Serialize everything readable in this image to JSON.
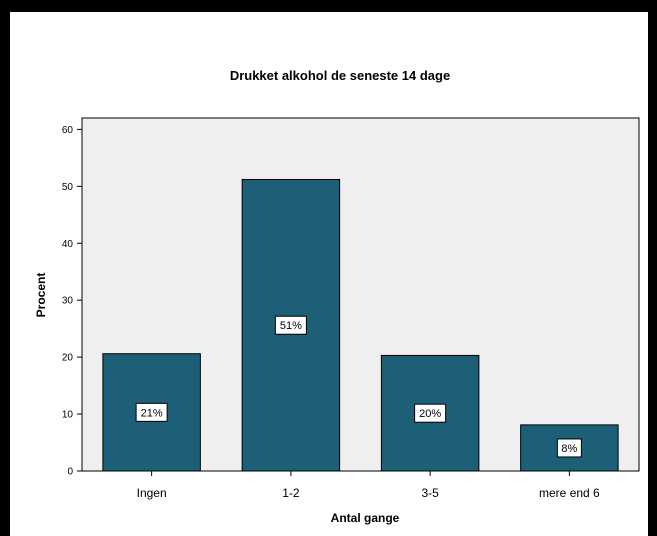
{
  "chart_data": {
    "type": "bar",
    "title": "Drukket alkohol de seneste 14 dage",
    "xlabel": "Antal gange",
    "ylabel": "Procent",
    "categories": [
      "Ingen",
      "1-2",
      "3-5",
      "mere end 6"
    ],
    "values": [
      20.6,
      51.2,
      20.3,
      8.1
    ],
    "data_labels": [
      "21%",
      "51%",
      "20%",
      "8%"
    ],
    "ylim": [
      0,
      62
    ],
    "yticks": [
      "0",
      "10",
      "20",
      "30",
      "40",
      "50",
      "60"
    ],
    "ytick_values": [
      0,
      10,
      20,
      30,
      40,
      50,
      60
    ],
    "grid": false,
    "colors": {
      "bar_fill": "#1e5f78",
      "plot_background": "#efefef",
      "frame_border": "#000000"
    }
  }
}
